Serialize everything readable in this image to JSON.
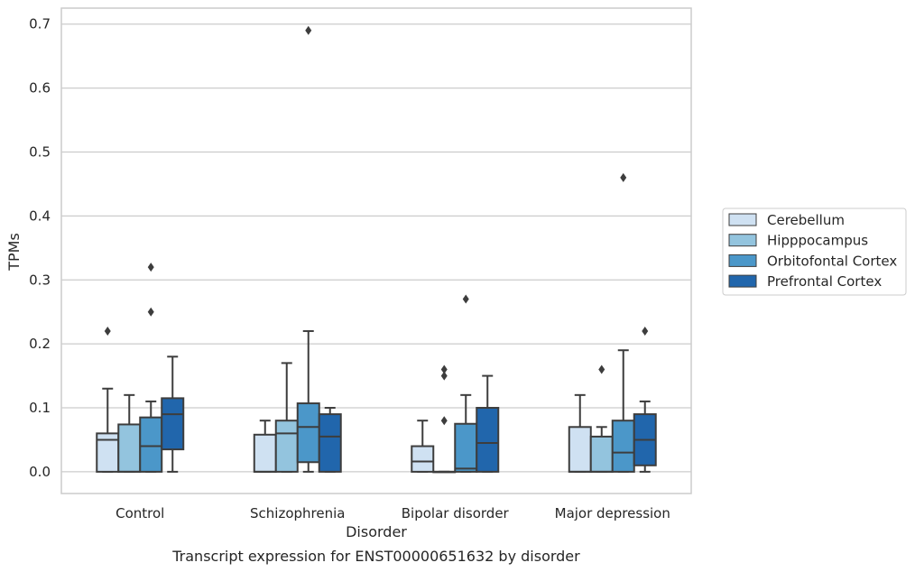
{
  "chart_data": {
    "type": "box",
    "title": "",
    "caption": "Transcript expression for ENST00000651632 by disorder",
    "xlabel": "Disorder",
    "ylabel": "TPMs",
    "ylim": [
      -0.034,
      0.725
    ],
    "yticks": [
      "0.0",
      "0.1",
      "0.2",
      "0.3",
      "0.4",
      "0.5",
      "0.6",
      "0.7"
    ],
    "ytick_values": [
      0.0,
      0.1,
      0.2,
      0.3,
      0.4,
      0.5,
      0.6,
      0.7
    ],
    "grid": true,
    "legend_position": "right",
    "categories": [
      "Control",
      "Schizophrenia",
      "Bipolar disorder",
      "Major depression"
    ],
    "series": [
      {
        "name": "Cerebellum",
        "color": "#cfe1f2",
        "boxes": [
          {
            "whislo": 0.0,
            "q1": 0.0,
            "med": 0.05,
            "q3": 0.06,
            "whishi": 0.13,
            "fliers": [
              0.22
            ]
          },
          {
            "whislo": 0.0,
            "q1": 0.0,
            "med": 0.0,
            "q3": 0.058,
            "whishi": 0.08,
            "fliers": []
          },
          {
            "whislo": 0.0,
            "q1": 0.0,
            "med": 0.016,
            "q3": 0.04,
            "whishi": 0.08,
            "fliers": []
          },
          {
            "whislo": 0.0,
            "q1": 0.0,
            "med": 0.0,
            "q3": 0.07,
            "whishi": 0.12,
            "fliers": []
          }
        ]
      },
      {
        "name": "Hipppocampus",
        "color": "#93c4de",
        "boxes": [
          {
            "whislo": 0.0,
            "q1": 0.0,
            "med": 0.0,
            "q3": 0.074,
            "whishi": 0.12,
            "fliers": []
          },
          {
            "whislo": 0.0,
            "q1": 0.0,
            "med": 0.06,
            "q3": 0.08,
            "whishi": 0.17,
            "fliers": []
          },
          {
            "whislo": 0.0,
            "q1": 0.0,
            "med": 0.0,
            "q3": 0.0,
            "whishi": 0.0,
            "fliers": [
              0.08,
              0.15,
              0.16
            ]
          },
          {
            "whislo": 0.0,
            "q1": 0.0,
            "med": 0.0,
            "q3": 0.055,
            "whishi": 0.07,
            "fliers": [
              0.16
            ]
          }
        ]
      },
      {
        "name": "Orbitofontal Cortex",
        "color": "#4b97c9",
        "boxes": [
          {
            "whislo": 0.0,
            "q1": 0.0,
            "med": 0.04,
            "q3": 0.085,
            "whishi": 0.11,
            "fliers": [
              0.25,
              0.32
            ]
          },
          {
            "whislo": 0.0,
            "q1": 0.015,
            "med": 0.07,
            "q3": 0.107,
            "whishi": 0.22,
            "fliers": [
              0.69
            ]
          },
          {
            "whislo": 0.0,
            "q1": 0.0,
            "med": 0.005,
            "q3": 0.075,
            "whishi": 0.12,
            "fliers": [
              0.27
            ]
          },
          {
            "whislo": 0.0,
            "q1": 0.0,
            "med": 0.03,
            "q3": 0.08,
            "whishi": 0.19,
            "fliers": [
              0.46
            ]
          }
        ]
      },
      {
        "name": "Prefrontal Cortex",
        "color": "#2166ac",
        "boxes": [
          {
            "whislo": 0.0,
            "q1": 0.035,
            "med": 0.09,
            "q3": 0.115,
            "whishi": 0.18,
            "fliers": []
          },
          {
            "whislo": 0.0,
            "q1": 0.0,
            "med": 0.055,
            "q3": 0.09,
            "whishi": 0.1,
            "fliers": []
          },
          {
            "whislo": 0.0,
            "q1": 0.0,
            "med": 0.045,
            "q3": 0.1,
            "whishi": 0.15,
            "fliers": []
          },
          {
            "whislo": 0.0,
            "q1": 0.01,
            "med": 0.05,
            "q3": 0.09,
            "whishi": 0.11,
            "fliers": [
              0.22
            ]
          }
        ]
      }
    ]
  }
}
